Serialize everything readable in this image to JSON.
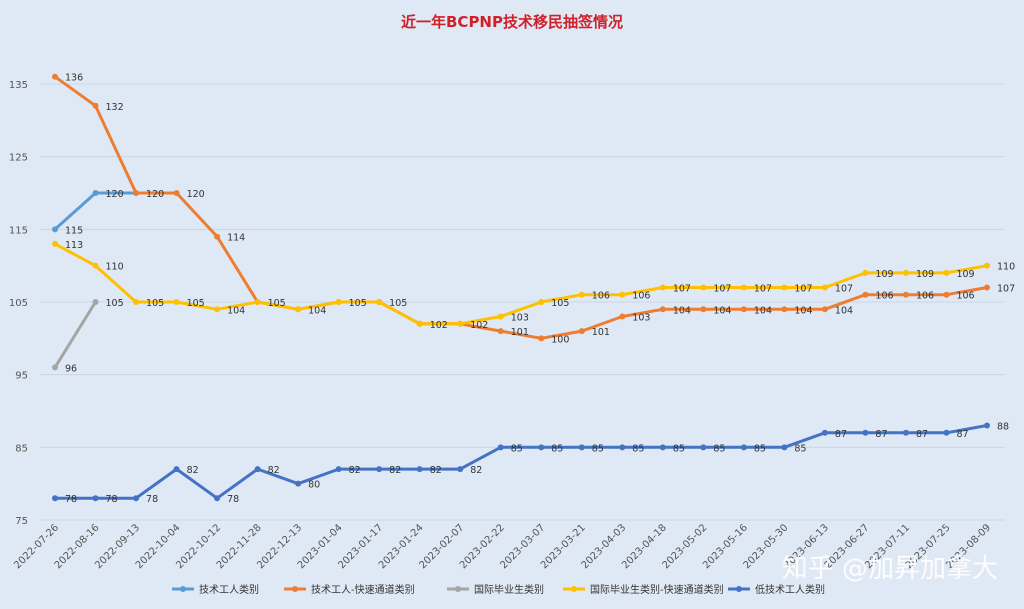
{
  "chart_data": {
    "type": "line",
    "title": "近一年BCPNP技术移民抽签情况",
    "xlabel": "",
    "ylabel": "",
    "ylim": [
      75,
      140
    ],
    "yticks": [
      75,
      85,
      95,
      105,
      115,
      125,
      135
    ],
    "grid": true,
    "legend_position": "bottom",
    "categories": [
      "2022-07-26",
      "2022-08-16",
      "2022-09-13",
      "2022-10-04",
      "2022-10-12",
      "2022-11-28",
      "2022-12-13",
      "2023-01-04",
      "2023-01-17",
      "2023-01-24",
      "2023-02-07",
      "2023-02-22",
      "2023-03-07",
      "2023-03-21",
      "2023-04-03",
      "2023-04-18",
      "2023-05-02",
      "2023-05-16",
      "2023-05-30",
      "2023-06-13",
      "2023-06-27",
      "2023-07-11",
      "2023-07-25",
      "2023-08-09"
    ],
    "series": [
      {
        "name": "技术工人类别",
        "color": "#5b9bd5",
        "values": [
          115,
          120,
          120,
          null,
          null,
          null,
          null,
          null,
          null,
          null,
          null,
          null,
          null,
          null,
          null,
          null,
          null,
          null,
          null,
          null,
          null,
          null,
          null,
          null
        ],
        "show_labels": [
          true,
          true,
          false,
          false,
          false,
          false,
          false,
          false,
          false,
          false,
          false,
          false,
          false,
          false,
          false,
          false,
          false,
          false,
          false,
          false,
          false,
          false,
          false,
          false
        ]
      },
      {
        "name": "技术工人-快速通道类别",
        "color": "#ed7d31",
        "values": [
          136,
          132,
          120,
          120,
          114,
          105,
          104,
          105,
          105,
          102,
          102,
          101,
          100,
          101,
          103,
          104,
          104,
          104,
          104,
          104,
          106,
          106,
          106,
          107
        ],
        "show_labels": [
          true,
          true,
          true,
          true,
          true,
          false,
          false,
          false,
          false,
          false,
          false,
          true,
          true,
          true,
          true,
          true,
          true,
          true,
          true,
          true,
          true,
          true,
          true,
          true
        ]
      },
      {
        "name": "国际毕业生类别",
        "color": "#a5a5a5",
        "values": [
          96,
          105,
          null,
          null,
          null,
          null,
          null,
          null,
          null,
          null,
          null,
          null,
          null,
          null,
          null,
          null,
          null,
          null,
          null,
          null,
          null,
          null,
          null,
          null
        ],
        "show_labels": [
          true,
          true,
          false,
          false,
          false,
          false,
          false,
          false,
          false,
          false,
          false,
          false,
          false,
          false,
          false,
          false,
          false,
          false,
          false,
          false,
          false,
          false,
          false,
          false
        ]
      },
      {
        "name": "国际毕业生类别-快速通道类别",
        "color": "#ffc000",
        "values": [
          113,
          110,
          105,
          105,
          104,
          105,
          104,
          105,
          105,
          102,
          102,
          103,
          105,
          106,
          106,
          107,
          107,
          107,
          107,
          107,
          109,
          109,
          109,
          110
        ],
        "show_labels": [
          true,
          true,
          true,
          true,
          true,
          true,
          true,
          true,
          true,
          true,
          true,
          true,
          true,
          true,
          true,
          true,
          true,
          true,
          true,
          true,
          true,
          true,
          true,
          true
        ]
      },
      {
        "name": "低技术工人类别",
        "color": "#4472c4",
        "values": [
          78,
          78,
          78,
          82,
          78,
          82,
          80,
          82,
          82,
          82,
          82,
          85,
          85,
          85,
          85,
          85,
          85,
          85,
          85,
          87,
          87,
          87,
          87,
          88
        ],
        "show_labels": [
          true,
          true,
          true,
          true,
          true,
          true,
          true,
          true,
          true,
          true,
          true,
          true,
          true,
          true,
          true,
          true,
          true,
          true,
          true,
          true,
          true,
          true,
          true,
          true
        ]
      }
    ]
  },
  "watermark": "知乎 @加昇加拿大"
}
